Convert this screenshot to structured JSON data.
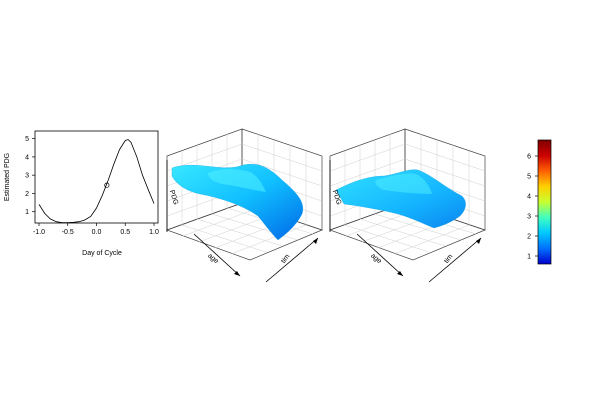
{
  "chart_data": [
    {
      "type": "line",
      "xlabel": "Day of Cycle",
      "ylabel": "Estimated PDG",
      "xlim": [
        -1.0,
        1.0
      ],
      "ylim": [
        0.6,
        5.2
      ],
      "x_ticks": [
        "-1.0",
        "-0.5",
        "0.0",
        "0.5",
        "1.0"
      ],
      "y_ticks": [
        "1",
        "2",
        "3",
        "4",
        "5"
      ],
      "x": [
        -1.0,
        -0.9,
        -0.8,
        -0.7,
        -0.6,
        -0.5,
        -0.4,
        -0.3,
        -0.2,
        -0.1,
        0.0,
        0.1,
        0.2,
        0.3,
        0.4,
        0.5,
        0.55,
        0.6,
        0.7,
        0.8,
        0.9,
        1.0
      ],
      "values": [
        1.4,
        0.9,
        0.6,
        0.45,
        0.4,
        0.4,
        0.42,
        0.45,
        0.55,
        0.75,
        1.2,
        1.9,
        2.7,
        3.6,
        4.4,
        4.9,
        4.95,
        4.8,
        4.0,
        3.0,
        2.2,
        1.45
      ],
      "marker": {
        "x": 0.18,
        "y": 2.45
      }
    },
    {
      "type": "surface",
      "axis_labels": {
        "z": "PDG",
        "x": "age",
        "y": "tim"
      }
    },
    {
      "type": "surface",
      "axis_labels": {
        "z": "PDG",
        "x": "age",
        "y": "tim"
      }
    },
    {
      "type": "colorbar",
      "ticks": [
        "1",
        "2",
        "3",
        "4",
        "5",
        "6"
      ],
      "range": [
        0.6,
        6.8
      ],
      "colors": [
        "#0000cc",
        "#0070ff",
        "#00c8ff",
        "#40ffc0",
        "#c8ff30",
        "#ffd000",
        "#ff6000",
        "#cc0000",
        "#800000"
      ]
    }
  ]
}
